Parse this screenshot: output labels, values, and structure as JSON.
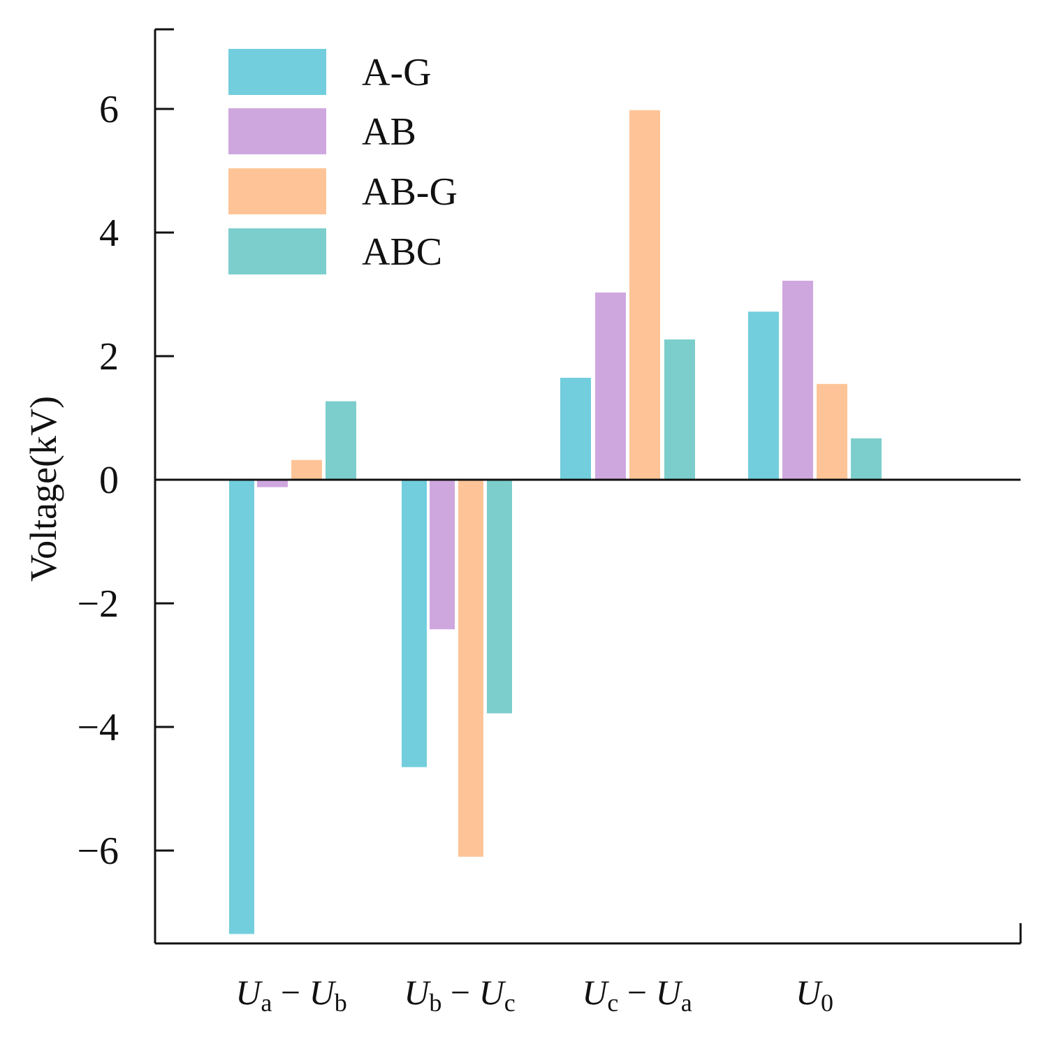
{
  "chart_data": {
    "type": "bar",
    "title": "",
    "xlabel": "",
    "ylabel": "Voltage(kV)",
    "ylim": [
      -7.5,
      7.3
    ],
    "yticks": [
      -6,
      -4,
      -2,
      0,
      2,
      4,
      6
    ],
    "ytick_labels": [
      "−6",
      "−4",
      "−2",
      "0",
      "2",
      "4",
      "6"
    ],
    "legend_position": "top-left",
    "categories": [
      {
        "parts": [
          {
            "t": "U",
            "sub": "a"
          },
          {
            "op": "−"
          },
          {
            "t": "U",
            "sub": "b"
          }
        ]
      },
      {
        "parts": [
          {
            "t": "U",
            "sub": "b"
          },
          {
            "op": "−"
          },
          {
            "t": "U",
            "sub": "c"
          }
        ]
      },
      {
        "parts": [
          {
            "t": "U",
            "sub": "c"
          },
          {
            "op": "−"
          },
          {
            "t": "U",
            "sub": "a"
          }
        ]
      },
      {
        "parts": [
          {
            "t": "U",
            "sub": "0"
          }
        ]
      }
    ],
    "series": [
      {
        "name": "A-G",
        "color": "#72CEDD",
        "values": [
          -7.35,
          -4.65,
          1.65,
          2.72
        ]
      },
      {
        "name": "AB",
        "color": "#CFA7DF",
        "values": [
          -0.12,
          -2.42,
          3.03,
          3.22
        ]
      },
      {
        "name": "AB-G",
        "color": "#FEC497",
        "values": [
          0.32,
          -6.1,
          5.98,
          1.55
        ]
      },
      {
        "name": "ABC",
        "color": "#7BCECB",
        "values": [
          1.27,
          -3.78,
          2.27,
          0.67
        ]
      }
    ]
  }
}
